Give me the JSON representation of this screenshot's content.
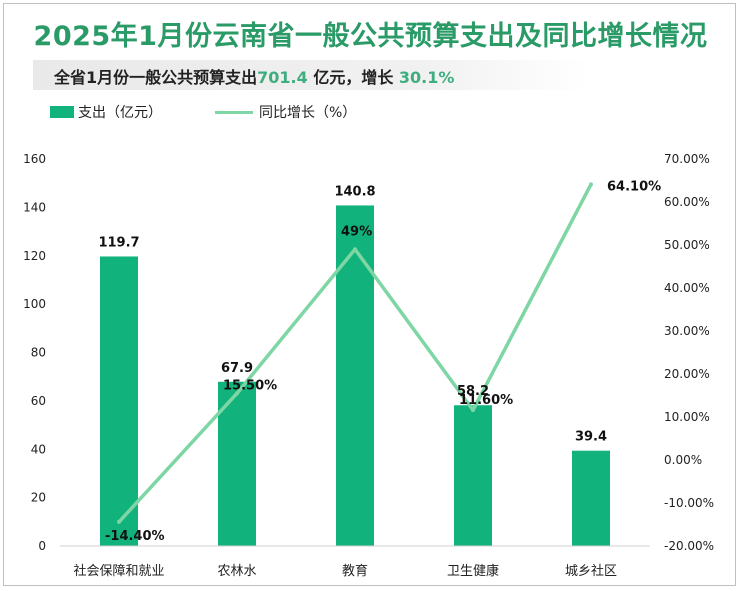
{
  "title": "2025年1月份云南省一般公共预算支出及同比增长情况",
  "subtitle": {
    "prefix": "全省1月份一般公共预算支出",
    "amount": "701.4",
    "middle": " 亿元，增长 ",
    "growth": "30.1%"
  },
  "colors": {
    "bar": "#12b27c",
    "line": "#7dd6a3",
    "title": "#2a9a67",
    "highlight": "#3fae7e"
  },
  "chart_data": {
    "type": "bar",
    "categories": [
      "社会保障和就业",
      "农林水",
      "教育",
      "卫生健康",
      "城乡社区"
    ],
    "series": [
      {
        "name": "支出（亿元）",
        "type": "bar",
        "axis": "left",
        "values": [
          119.7,
          67.9,
          140.8,
          58.2,
          39.4
        ],
        "labels": [
          "119.7",
          "67.9",
          "140.8",
          "58.2",
          "39.4"
        ]
      },
      {
        "name": "同比增长（%）",
        "type": "line",
        "axis": "right",
        "values": [
          -14.4,
          15.5,
          49,
          11.6,
          64.1
        ],
        "labels": [
          "-14.40%",
          "15.50%",
          "49%",
          "11.60%",
          "64.10%"
        ]
      }
    ],
    "y_left": {
      "min": 0,
      "max": 160,
      "ticks": [
        "0",
        "20",
        "40",
        "60",
        "80",
        "100",
        "120",
        "140",
        "160"
      ]
    },
    "y_right": {
      "min": -20,
      "max": 70,
      "ticks": [
        "-20.00%",
        "-10.00%",
        "0.00%",
        "10.00%",
        "20.00%",
        "30.00%",
        "40.00%",
        "50.00%",
        "60.00%",
        "70.00%"
      ]
    },
    "legend_position": "top-left",
    "grid": false
  }
}
